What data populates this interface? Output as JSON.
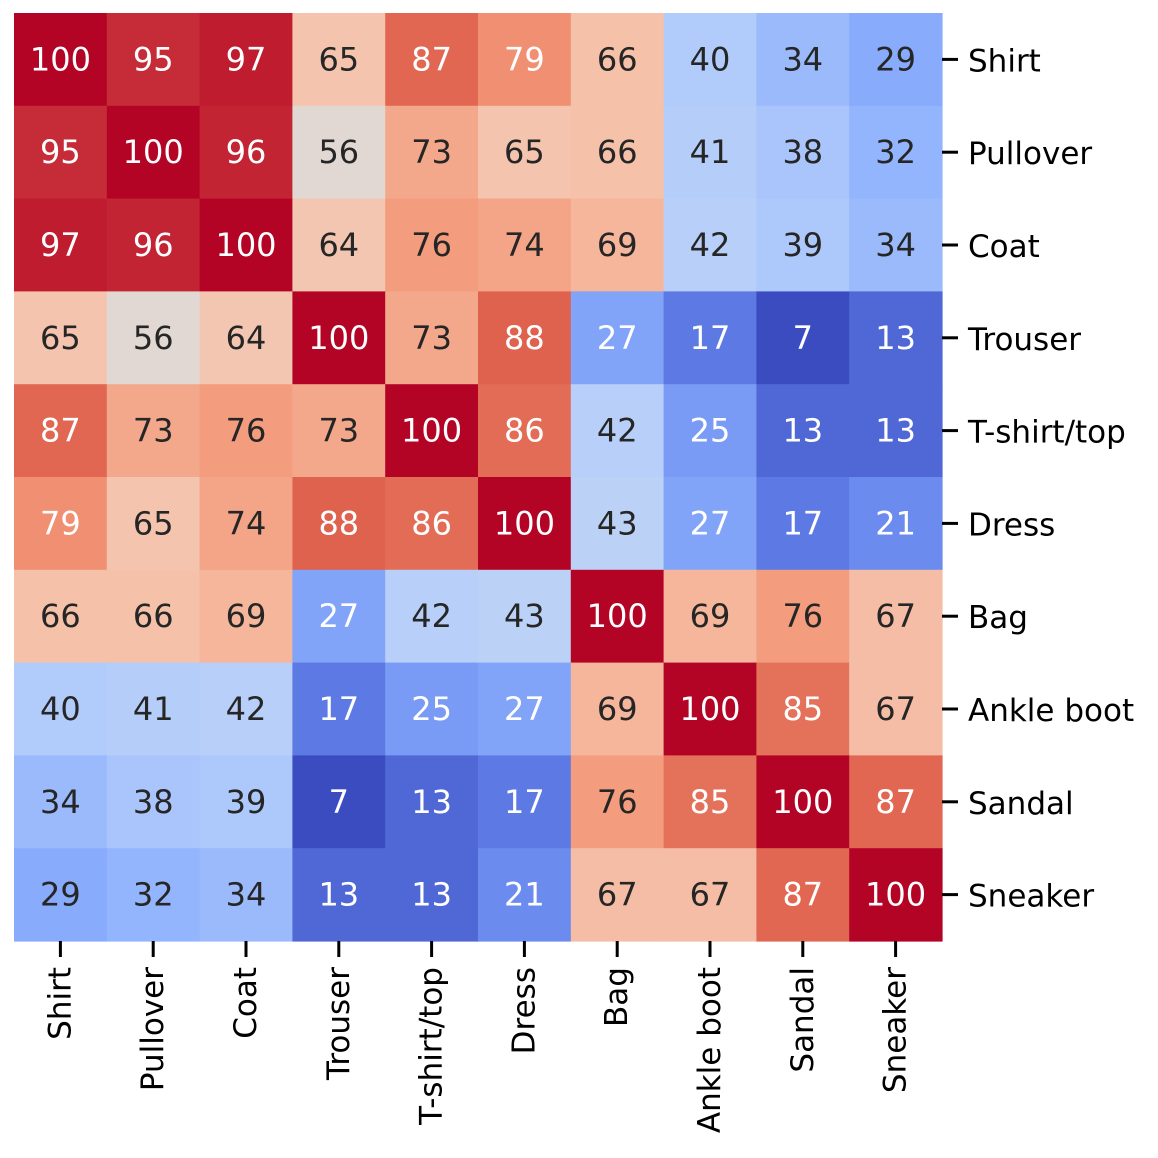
{
  "chart_data": {
    "type": "heatmap",
    "title": "",
    "xlabel": "",
    "ylabel": "",
    "colormap": "coolwarm",
    "value_range": [
      7,
      100
    ],
    "x_categories": [
      "Shirt",
      "Pullover",
      "Coat",
      "Trouser",
      "T-shirt/top",
      "Dress",
      "Bag",
      "Ankle boot",
      "Sandal",
      "Sneaker"
    ],
    "y_categories": [
      "Shirt",
      "Pullover",
      "Coat",
      "Trouser",
      "T-shirt/top",
      "Dress",
      "Bag",
      "Ankle boot",
      "Sandal",
      "Sneaker"
    ],
    "y_tick_side": "right",
    "x_tick_rotation": "vertical",
    "colorbar": false,
    "values": [
      [
        100,
        95,
        97,
        65,
        87,
        79,
        66,
        40,
        34,
        29
      ],
      [
        95,
        100,
        96,
        56,
        73,
        65,
        66,
        41,
        38,
        32
      ],
      [
        97,
        96,
        100,
        64,
        76,
        74,
        69,
        42,
        39,
        34
      ],
      [
        65,
        56,
        64,
        100,
        73,
        88,
        27,
        17,
        7,
        13
      ],
      [
        87,
        73,
        76,
        73,
        100,
        86,
        42,
        25,
        13,
        13
      ],
      [
        79,
        65,
        74,
        88,
        86,
        100,
        43,
        27,
        17,
        21
      ],
      [
        66,
        66,
        69,
        27,
        42,
        43,
        100,
        69,
        76,
        67
      ],
      [
        40,
        41,
        42,
        17,
        25,
        27,
        69,
        100,
        85,
        67
      ],
      [
        34,
        38,
        39,
        7,
        13,
        17,
        76,
        85,
        100,
        87
      ],
      [
        29,
        32,
        34,
        13,
        13,
        21,
        67,
        67,
        87,
        100
      ]
    ]
  }
}
